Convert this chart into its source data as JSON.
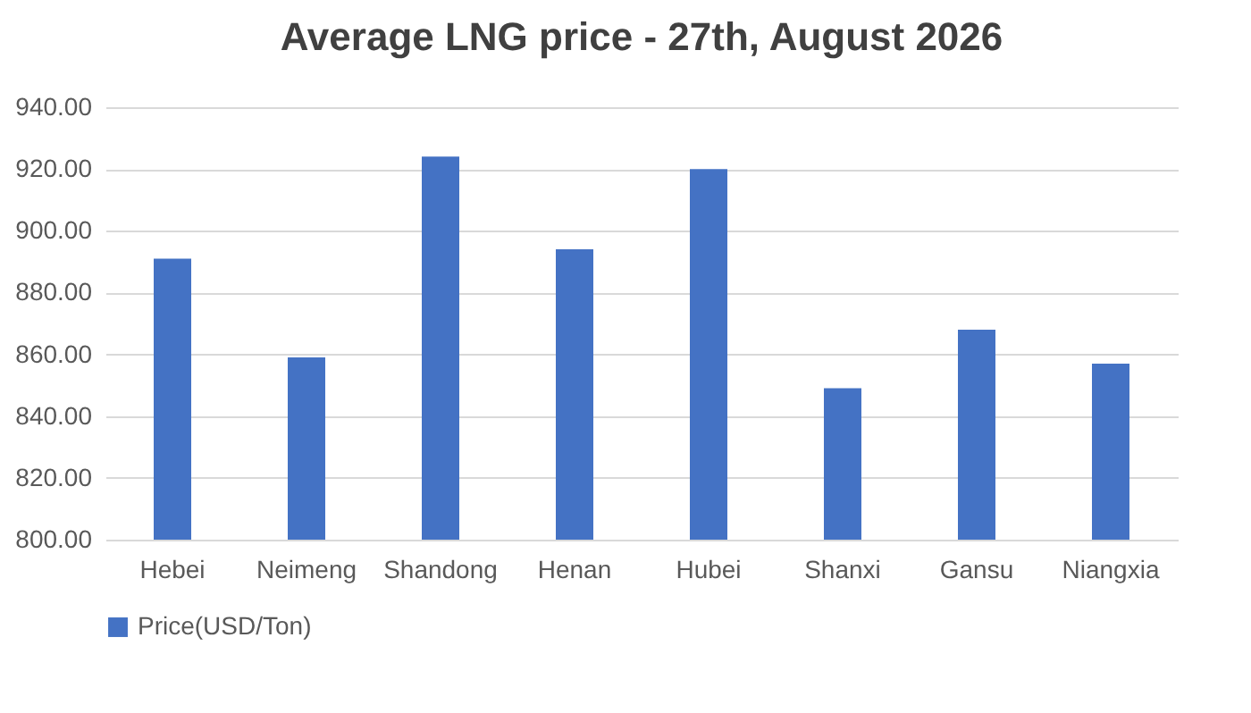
{
  "chart_data": {
    "type": "bar",
    "title": "Average LNG price - 27th, August 2026",
    "categories": [
      "Hebei",
      "Neimeng",
      "Shandong",
      "Henan",
      "Hubei",
      "Shanxi",
      "Gansu",
      "Niangxia"
    ],
    "series": [
      {
        "name": "Price(USD/Ton)",
        "color": "#4472c4",
        "values": [
          891,
          859,
          924,
          894,
          920,
          849,
          868,
          857
        ]
      }
    ],
    "ylim": [
      800,
      940
    ],
    "yticks": [
      {
        "value": 800,
        "label": "800.00"
      },
      {
        "value": 820,
        "label": "820.00"
      },
      {
        "value": 840,
        "label": "840.00"
      },
      {
        "value": 860,
        "label": "860.00"
      },
      {
        "value": 880,
        "label": "880.00"
      },
      {
        "value": 900,
        "label": "900.00"
      },
      {
        "value": 920,
        "label": "920.00"
      },
      {
        "value": 940,
        "label": "940.00"
      }
    ],
    "grid": "y",
    "legend": "bottom"
  }
}
